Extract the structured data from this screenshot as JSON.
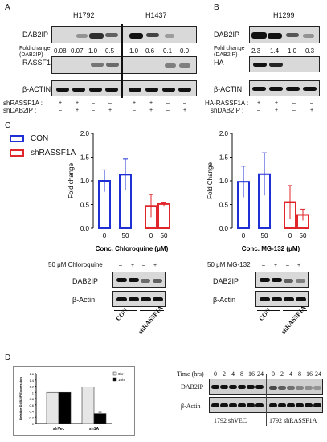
{
  "panel_a": {
    "label": "A",
    "cell_lines": [
      "H1792",
      "H1437"
    ],
    "rows": [
      "DAB2IP",
      "RASSF1A",
      "β-ACTIN"
    ],
    "fold_change_label": "Fold change",
    "fold_change_sub": "(DAB2IP)",
    "fold_values": [
      "0.08",
      "0.07",
      "1.0",
      "0.5",
      "1.0",
      "0.6",
      "0.1",
      "0.0"
    ],
    "treat_rows": [
      {
        "label": "shRASSF1A :",
        "marks": [
          "+",
          "+",
          "–",
          "–",
          "+",
          "+",
          "–",
          "–"
        ]
      },
      {
        "label": "shDAB2IP :",
        "marks": [
          "–",
          "+",
          "–",
          "+",
          "–",
          "+",
          "–",
          "+"
        ]
      }
    ]
  },
  "panel_b": {
    "label": "B",
    "cell_line": "H1299",
    "rows": [
      "DAB2IP",
      "HA",
      "β-ACTIN"
    ],
    "fold_change_label": "Fold change",
    "fold_change_sub": "(DAB2IP)",
    "fold_values": [
      "2.3",
      "1.4",
      "1.0",
      "0.3"
    ],
    "treat_rows": [
      {
        "label": "HA-RASSF1A :",
        "marks": [
          "+",
          "+",
          "–",
          "–"
        ]
      },
      {
        "label": "shDAB2IP :",
        "marks": [
          "–",
          "+",
          "–",
          "+"
        ]
      }
    ]
  },
  "panel_c": {
    "label": "C",
    "legend": [
      {
        "label": "CON",
        "color": "#1f2fd6"
      },
      {
        "label": "shRASSF1A",
        "color": "#e0262a"
      }
    ],
    "left_blot": {
      "treat_label": "50 μM Chloroquine",
      "marks": [
        "–",
        "+",
        "–",
        "+"
      ],
      "rows": [
        "DAB2IP",
        "β-Actin"
      ],
      "groups": [
        "CON",
        "shRASSF1A"
      ]
    },
    "right_blot": {
      "treat_label": "50 μM MG-132",
      "marks": [
        "–",
        "+",
        "–",
        "+"
      ],
      "rows": [
        "DAB2IP",
        "β-Actin"
      ],
      "groups": [
        "CON",
        "shRASSF1A"
      ]
    }
  },
  "panel_d": {
    "label": "D",
    "blot": {
      "time_label": "Time (hrs)",
      "times": [
        "0",
        "2",
        "4",
        "8",
        "16",
        "24",
        "0",
        "2",
        "4",
        "8",
        "16",
        "24"
      ],
      "rows": [
        "DAB2IP",
        "β-Actin"
      ],
      "groups": [
        "1792 shVEC",
        "1792 shRASSF1A"
      ]
    }
  },
  "chart_data": [
    {
      "type": "bar",
      "panel": "C-left",
      "categories": [
        "0",
        "50",
        "0",
        "50"
      ],
      "groups": [
        "CON",
        "CON",
        "shRASSF1A",
        "shRASSF1A"
      ],
      "values": [
        1.0,
        1.13,
        0.47,
        0.51
      ],
      "errors": [
        0.23,
        0.33,
        0.24,
        0.04
      ],
      "colors": [
        "#1f2fd6",
        "#1f2fd6",
        "#e0262a",
        "#e0262a"
      ],
      "ylabel": "Fold change",
      "xlabel": "Conc. Chloroquine (μM)",
      "ylim": [
        0,
        2.0
      ],
      "yticks": [
        "0.0",
        "0.5",
        "1.0",
        "1.5",
        "2.0"
      ]
    },
    {
      "type": "bar",
      "panel": "C-right",
      "categories": [
        "0",
        "50",
        "0",
        "50"
      ],
      "groups": [
        "CON",
        "CON",
        "shRASSF1A",
        "shRASSF1A"
      ],
      "values": [
        0.98,
        1.14,
        0.55,
        0.28
      ],
      "errors": [
        0.33,
        0.45,
        0.35,
        0.12
      ],
      "colors": [
        "#1f2fd6",
        "#1f2fd6",
        "#e0262a",
        "#e0262a"
      ],
      "ylabel": "Fold Change",
      "xlabel": "Conc. MG-132 (μM)",
      "ylim": [
        0,
        2.0
      ],
      "yticks": [
        "0.0",
        "0.5",
        "1.0",
        "1.5",
        "2.0"
      ]
    },
    {
      "type": "bar",
      "panel": "D",
      "categories": [
        "shVec",
        "sh1A"
      ],
      "series": [
        {
          "name": "0hr",
          "values": [
            1.0,
            1.17
          ],
          "errors": [
            0.0,
            0.13
          ],
          "color": "#e6e6e6"
        },
        {
          "name": "16hr",
          "values": [
            1.0,
            0.32
          ],
          "errors": [
            0.0,
            0.04
          ],
          "color": "#000000"
        }
      ],
      "ylabel": "Relative DAB2IP Expression",
      "ylim": [
        0,
        1.6
      ],
      "yticks": [
        "0",
        "0.2",
        "0.4",
        "0.6",
        "0.8",
        "1",
        "1.2",
        "1.4",
        "1.6"
      ]
    }
  ]
}
